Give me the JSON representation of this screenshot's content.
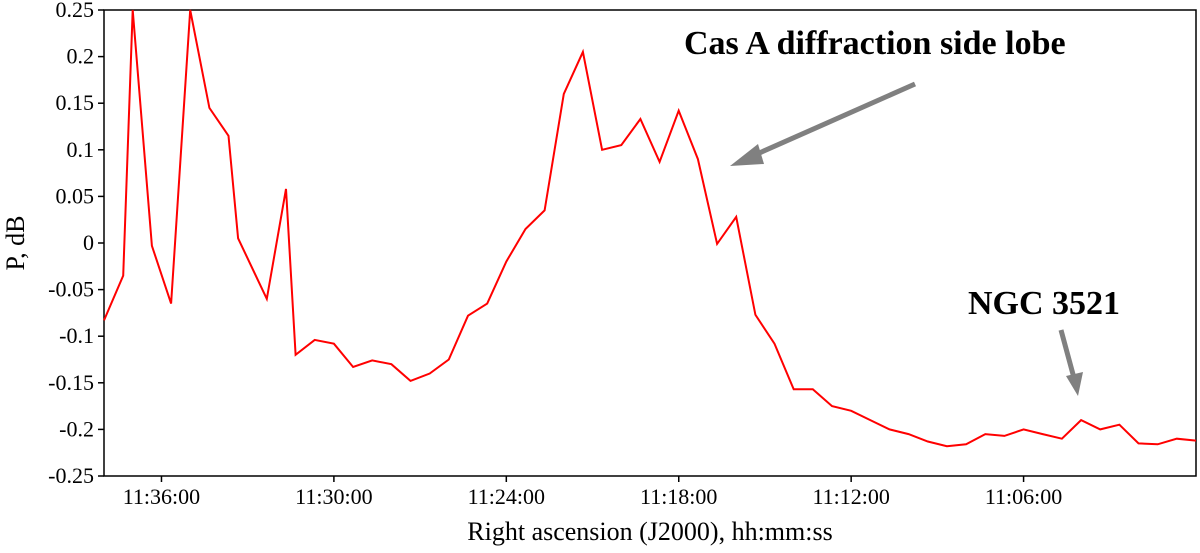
{
  "chart_data": {
    "type": "line",
    "title": "",
    "xlabel": "Right ascension (J2000), hh:mm:ss",
    "ylabel": "P, dB",
    "x_axis_reversed": true,
    "x_range": [
      "11:38:00",
      "11:00:00"
    ],
    "ylim": [
      -0.25,
      0.25
    ],
    "y_ticks": [
      0.25,
      0.2,
      0.15,
      0.1,
      0.05,
      0,
      -0.05,
      -0.1,
      -0.15,
      -0.2,
      -0.25
    ],
    "y_tick_labels": [
      "0.25",
      "0.2",
      "0.15",
      "0.1",
      "0.05",
      "0",
      "-0.05",
      "-0.1",
      "-0.15",
      "-0.2",
      "-0.25"
    ],
    "x_ticks": [
      "11:36:00",
      "11:30:00",
      "11:24:00",
      "11:18:00",
      "11:12:00",
      "11:06:00"
    ],
    "grid": false,
    "line_color": "#ff0000",
    "annotation_color": "#808080",
    "series": [
      {
        "x": [
          "11:38:00",
          "11:37:20",
          "11:37:00",
          "11:36:20",
          "11:35:40",
          "11:35:00",
          "11:34:20",
          "11:33:40",
          "11:33:20",
          "11:32:20",
          "11:31:40",
          "11:31:20",
          "11:30:40",
          "11:30:00",
          "11:29:20",
          "11:28:40",
          "11:28:00",
          "11:27:20",
          "11:26:40",
          "11:26:00",
          "11:25:20",
          "11:24:40",
          "11:24:00",
          "11:23:20",
          "11:22:40",
          "11:22:00",
          "11:21:20",
          "11:20:40",
          "11:20:00",
          "11:19:20",
          "11:18:40",
          "11:18:00",
          "11:17:20",
          "11:16:40",
          "11:16:00",
          "11:15:20",
          "11:14:40",
          "11:14:00",
          "11:13:20",
          "11:12:40",
          "11:12:00",
          "11:11:20",
          "11:10:40",
          "11:10:00",
          "11:09:20",
          "11:08:40",
          "11:08:00",
          "11:07:20",
          "11:06:40",
          "11:06:00",
          "11:05:20",
          "11:04:40",
          "11:04:00",
          "11:03:20",
          "11:02:40",
          "11:02:00",
          "11:01:20",
          "11:00:40",
          "11:00:00"
        ],
        "y": [
          -0.083,
          -0.035,
          0.25,
          -0.003,
          -0.065,
          0.25,
          0.145,
          0.115,
          0.005,
          -0.06,
          0.058,
          -0.12,
          -0.104,
          -0.108,
          -0.133,
          -0.126,
          -0.13,
          -0.148,
          -0.14,
          -0.125,
          -0.078,
          -0.065,
          -0.02,
          0.015,
          0.035,
          0.16,
          0.205,
          0.1,
          0.105,
          0.133,
          0.087,
          0.142,
          0.09,
          -0.001,
          0.028,
          -0.077,
          -0.108,
          -0.157,
          -0.157,
          -0.175,
          -0.18,
          -0.19,
          -0.2,
          -0.205,
          -0.213,
          -0.218,
          -0.216,
          -0.205,
          -0.207,
          -0.2,
          -0.205,
          -0.21,
          -0.19,
          -0.2,
          -0.195,
          -0.215,
          -0.216,
          -0.21,
          -0.212
        ]
      }
    ],
    "annotations": [
      {
        "text": "Cas A diffraction side lobe",
        "x": "11:16:30",
        "y": 0.09
      },
      {
        "text": "NGC 3521",
        "x": "11:05:00",
        "y": -0.17
      }
    ]
  }
}
